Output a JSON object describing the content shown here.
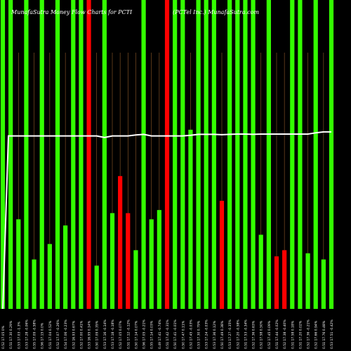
{
  "header": {
    "title_left": "MunafaSutra Money Flow Charts for PCTI",
    "title_right": "(PCTel Inc.) MunafaSutra.com"
  },
  "colors": {
    "background": "#000000",
    "up": "#33ff00",
    "down": "#ff0000",
    "price_line": "#ffffff",
    "grid": "#b87333"
  },
  "chart_data": {
    "type": "bar",
    "ylim": [
      0,
      100
    ],
    "grid": "vertical",
    "categories": [
      "0.52 17.05 0%",
      "0.51 17.30 0.29%",
      "0.53 17.03 -1.3%",
      "0.53 17.28 -0.06%",
      "0.55 17.09 -0.58%",
      "0.56 17.15 0.0%",
      "0.51 17.04 0.52%",
      "0.52 17.07 -0.26%",
      "0.54 17.06 -0.23%",
      "0.52 16.93 0.67%",
      "0.52 17.00 0.41%",
      "0.53 16.95 0.14%",
      "0.50 17.09 0.35%",
      "0.53 17.16 -0.14%",
      "0.53 17.18 -0.18%",
      "0.52 17.05 0.07%",
      "0.51 17.12 -0.12%",
      "0.50 17.14 0.07%",
      "0.56 17.05 -0.21%",
      "0.55 17.14 0.03%",
      "0.49 17.41 -0.74%",
      "0.51 17.42 -0.31%",
      "0.50 17.41 -0.01%",
      "0.50 17.47 0.11%",
      "0.52 17.45 -0.03%",
      "0.53 17.30 0.79%",
      "0.53 17.24 -0.03%",
      "0.53 17.36 0.12%",
      "0.50 17.49 0.38%",
      "0.53 17.27 -0.35%",
      "0.52 17.20 -0.58%",
      "0.51 17.53 -0.34%",
      "0.52 17.36 0.63%",
      "0.52 17.58 0.50%",
      "0.52 17.45 0.09%",
      "0.51 17.44 -0.02%",
      "0.52 17.38 -0.40%",
      "0.51 17.58 0.18%",
      "0.51 17.20 0.02%",
      "0.52 17.36 -0.21%",
      "0.52 17.66 0.94%",
      "0.51 17.76 0.48%",
      "0.53 17.51 -0.42%"
    ],
    "bar_colors": [
      "up",
      "up",
      "up",
      "up",
      "up",
      "up",
      "up",
      "up",
      "up",
      "up",
      "up",
      "down",
      "up",
      "up",
      "up",
      "down",
      "down",
      "up",
      "up",
      "up",
      "up",
      "down",
      "up",
      "up",
      "up",
      "up",
      "up",
      "up",
      "down",
      "up",
      "up",
      "up",
      "up",
      "up",
      "up",
      "down",
      "down",
      "up",
      "up",
      "up",
      "up",
      "up",
      "up"
    ],
    "full_height": [
      true,
      true,
      false,
      true,
      false,
      true,
      false,
      true,
      false,
      true,
      true,
      true,
      false,
      true,
      false,
      false,
      false,
      false,
      true,
      false,
      false,
      false,
      true,
      true,
      false,
      false,
      true,
      true,
      false,
      false,
      true,
      true,
      true,
      false,
      true,
      false,
      false,
      true,
      true,
      false,
      true,
      false,
      true
    ],
    "values": [
      100,
      100,
      29,
      100,
      16,
      100,
      21,
      100,
      27,
      100,
      100,
      100,
      14,
      100,
      31,
      43,
      31,
      19,
      100,
      29,
      32,
      100,
      55,
      100,
      58,
      100,
      13,
      100,
      35,
      100,
      100,
      100,
      49,
      24,
      100,
      17,
      19,
      100,
      12,
      18,
      89,
      16,
      100
    ],
    "price_line": [
      56,
      56,
      56,
      56,
      56,
      56,
      56,
      56,
      56,
      56,
      56,
      56,
      56,
      55.5,
      56,
      56,
      56,
      56.3,
      56.5,
      56,
      56,
      56,
      56,
      56,
      56.2,
      56.5,
      56.5,
      56.5,
      56.4,
      56.5,
      56.6,
      56.6,
      56.5,
      56.6,
      56.6,
      56.6,
      56.6,
      56.6,
      56.6,
      56.6,
      57,
      57.3,
      57.3
    ]
  }
}
